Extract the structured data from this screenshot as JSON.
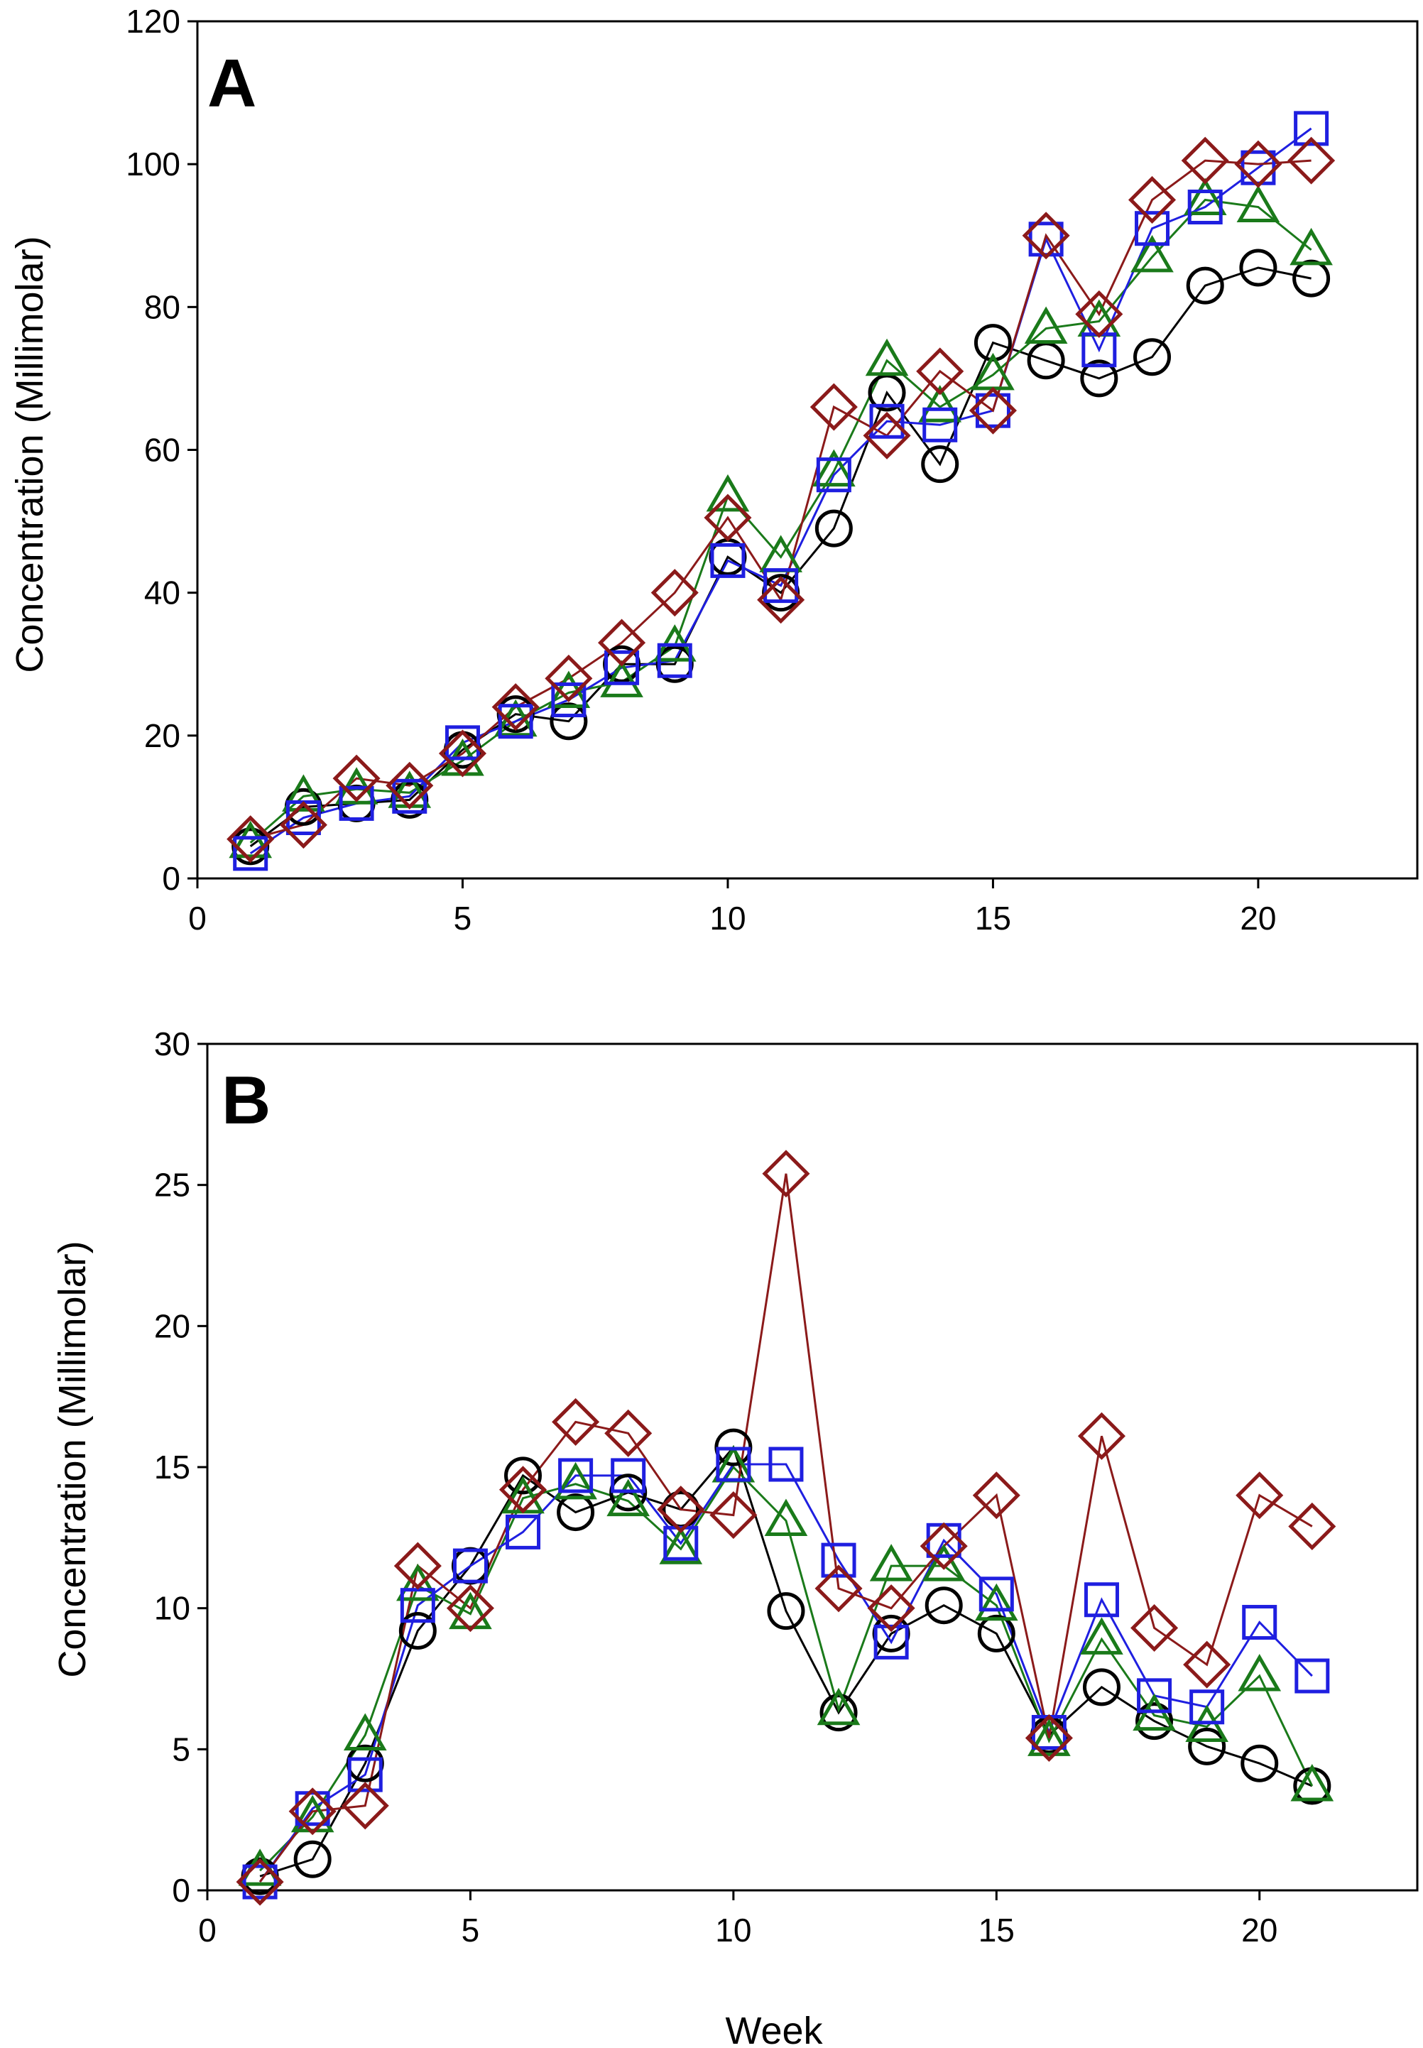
{
  "figure": {
    "x_title": "Week"
  },
  "chart_data": [
    {
      "type": "line",
      "panel_label": "A",
      "ylabel": "Concentration (Millimolar)",
      "xlim": [
        0,
        23
      ],
      "ylim": [
        0,
        120
      ],
      "xticks": [
        0,
        5,
        10,
        15,
        20
      ],
      "yticks": [
        0,
        20,
        40,
        60,
        80,
        100,
        120
      ],
      "x": [
        1,
        2,
        3,
        4,
        5,
        6,
        7,
        8,
        9,
        10,
        11,
        12,
        13,
        14,
        15,
        16,
        17,
        18,
        19,
        20,
        21
      ],
      "series": [
        {
          "name": "circle",
          "color": "#000000",
          "marker": "circle",
          "values": [
            4.5,
            10,
            10.5,
            11,
            18,
            23,
            22,
            30,
            30,
            45,
            40,
            49,
            68,
            58,
            75,
            72.5,
            70,
            73,
            83,
            85.5,
            84
          ]
        },
        {
          "name": "triangle",
          "color": "#1a7a1a",
          "marker": "triangle",
          "values": [
            5,
            11.5,
            12.5,
            12,
            16.5,
            22,
            26,
            27.5,
            32.5,
            53.5,
            45,
            57,
            72.5,
            66,
            70.5,
            77,
            78,
            87,
            95,
            94,
            88
          ]
        },
        {
          "name": "square",
          "color": "#1f1fe0",
          "marker": "square",
          "values": [
            3.5,
            8.5,
            10.5,
            11.5,
            19,
            22,
            25,
            29.5,
            30.5,
            44.5,
            41,
            56.5,
            64,
            63.5,
            65.5,
            89.5,
            74,
            91,
            94,
            99.5,
            105
          ]
        },
        {
          "name": "diamond",
          "color": "#8b1a1a",
          "marker": "diamond",
          "values": [
            5.5,
            7.5,
            14,
            13,
            17.5,
            24,
            28,
            33,
            40,
            50.5,
            39,
            66,
            62,
            71,
            65.5,
            90,
            79,
            95,
            100.5,
            100,
            100.5
          ]
        }
      ]
    },
    {
      "type": "line",
      "panel_label": "B",
      "ylabel": "Concentration (Millimolar)",
      "xlabel": "Week",
      "xlim": [
        0,
        23
      ],
      "ylim": [
        0,
        30
      ],
      "xticks": [
        0,
        5,
        10,
        15,
        20
      ],
      "yticks": [
        0,
        5,
        10,
        15,
        20,
        25,
        30
      ],
      "x": [
        1,
        2,
        3,
        4,
        5,
        6,
        7,
        8,
        9,
        10,
        11,
        12,
        13,
        14,
        15,
        16,
        17,
        18,
        19,
        20,
        21
      ],
      "series": [
        {
          "name": "circle",
          "color": "#000000",
          "marker": "circle",
          "values": [
            0.5,
            1.1,
            4.5,
            9.2,
            11.5,
            14.7,
            13.4,
            14.1,
            13.5,
            15.7,
            9.9,
            6.3,
            9.1,
            10.1,
            9.1,
            5.5,
            7.2,
            6.0,
            5.1,
            4.5,
            3.7
          ]
        },
        {
          "name": "triangle",
          "color": "#1a7a1a",
          "marker": "triangle",
          "values": [
            0.7,
            2.6,
            5.5,
            10.8,
            9.8,
            13.9,
            14.4,
            13.8,
            12.1,
            15.0,
            13.1,
            6.4,
            11.5,
            11.5,
            10.1,
            5.3,
            8.9,
            6.2,
            5.8,
            7.6,
            3.7
          ]
        },
        {
          "name": "square",
          "color": "#1f1fe0",
          "marker": "square",
          "values": [
            0.3,
            2.9,
            4.1,
            10.1,
            11.5,
            12.7,
            14.7,
            14.7,
            12.3,
            15.1,
            15.1,
            11.7,
            8.8,
            12.4,
            10.5,
            5.6,
            10.3,
            6.9,
            6.5,
            9.5,
            7.6
          ]
        },
        {
          "name": "diamond",
          "color": "#8b1a1a",
          "marker": "diamond",
          "values": [
            0.3,
            2.8,
            3.0,
            11.5,
            10.0,
            14.2,
            16.6,
            16.2,
            13.5,
            13.3,
            25.4,
            10.7,
            10.0,
            12.2,
            14.0,
            5.4,
            16.1,
            9.3,
            8.0,
            14.0,
            12.9
          ]
        }
      ]
    }
  ]
}
